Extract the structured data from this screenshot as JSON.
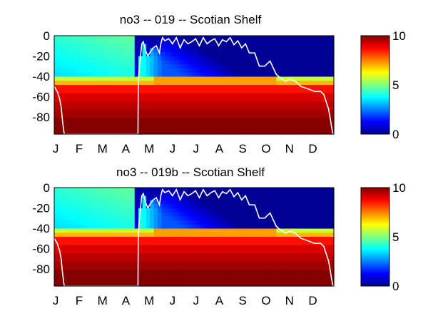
{
  "figure": {
    "background": "#ffffff",
    "colormap": "jet"
  },
  "chart_data": [
    {
      "type": "heatmap",
      "title": "no3 -- 019 -- Scotian Shelf",
      "x_ticks": [
        "J",
        "F",
        "M",
        "A",
        "M",
        "J",
        "J",
        "A",
        "S",
        "O",
        "N",
        "D"
      ],
      "y_ticks": [
        "0",
        "-20",
        "-40",
        "-60",
        "-80"
      ],
      "y_tick_values": [
        0,
        -20,
        -40,
        -60,
        -80
      ],
      "ylim": [
        -97,
        0
      ],
      "xlim": [
        1,
        365
      ],
      "colorbar": {
        "min": 0,
        "max": 10,
        "ticks": [
          "0",
          "5",
          "10"
        ],
        "tick_values": [
          0,
          5,
          10
        ]
      },
      "overlay_line": {
        "color": "#ffffff",
        "day": [
          1,
          5,
          8,
          10,
          12,
          14,
          110,
          110.5,
          112,
          114,
          115,
          117,
          120,
          123,
          126,
          130,
          134,
          138,
          140,
          142,
          145,
          150,
          155,
          160,
          165,
          170,
          175,
          180,
          185,
          190,
          195,
          200,
          205,
          210,
          215,
          220,
          225,
          230,
          235,
          240,
          245,
          250,
          255,
          262,
          268,
          275,
          282,
          290,
          296,
          302,
          308,
          315,
          322,
          330,
          340,
          348,
          352,
          355,
          358,
          360,
          362,
          364
        ],
        "depth": [
          -50,
          -55,
          -62,
          -70,
          -85,
          -97,
          -97,
          -45,
          -30,
          -15,
          -8,
          -6,
          -15,
          -20,
          -16,
          -12,
          -10,
          -17,
          -7,
          -2,
          -5,
          -3,
          -8,
          -2,
          -12,
          -4,
          -8,
          -6,
          -3,
          -10,
          -2,
          -8,
          -5,
          -3,
          -10,
          -4,
          -6,
          -2,
          -9,
          -5,
          -12,
          -8,
          -17,
          -17,
          -30,
          -30,
          -25,
          -38,
          -42,
          -45,
          -43,
          -45,
          -50,
          -52,
          -55,
          -55,
          -58,
          -65,
          -72,
          -80,
          -90,
          -97
        ]
      },
      "field_description": "no3 concentration by day of year and depth"
    },
    {
      "type": "heatmap",
      "title": "no3 -- 019b -- Scotian Shelf",
      "x_ticks": [
        "J",
        "F",
        "M",
        "A",
        "M",
        "J",
        "J",
        "A",
        "S",
        "O",
        "N",
        "D"
      ],
      "y_ticks": [
        "0",
        "-20",
        "-40",
        "-60",
        "-80"
      ],
      "y_tick_values": [
        0,
        -20,
        -40,
        -60,
        -80
      ],
      "ylim": [
        -97,
        0
      ],
      "xlim": [
        1,
        365
      ],
      "colorbar": {
        "min": 0,
        "max": 10,
        "ticks": [
          "0",
          "5",
          "10"
        ],
        "tick_values": [
          0,
          5,
          10
        ]
      },
      "overlay_line": {
        "color": "#ffffff",
        "day": [
          1,
          5,
          8,
          10,
          12,
          14,
          110,
          110.5,
          112,
          114,
          115,
          117,
          120,
          123,
          126,
          130,
          134,
          138,
          140,
          142,
          145,
          150,
          155,
          160,
          165,
          170,
          175,
          180,
          185,
          190,
          195,
          200,
          205,
          210,
          215,
          220,
          225,
          230,
          235,
          240,
          245,
          250,
          255,
          262,
          268,
          275,
          282,
          290,
          296,
          302,
          308,
          315,
          322,
          330,
          340,
          348,
          352,
          355,
          358,
          360,
          362,
          364
        ],
        "depth": [
          -50,
          -55,
          -62,
          -70,
          -85,
          -97,
          -97,
          -45,
          -30,
          -15,
          -8,
          -6,
          -15,
          -20,
          -16,
          -12,
          -10,
          -17,
          -7,
          -2,
          -5,
          -3,
          -8,
          -2,
          -12,
          -4,
          -8,
          -6,
          -3,
          -10,
          -2,
          -8,
          -5,
          -3,
          -10,
          -4,
          -6,
          -2,
          -9,
          -5,
          -12,
          -8,
          -17,
          -17,
          -30,
          -30,
          -25,
          -38,
          -42,
          -45,
          -43,
          -45,
          -50,
          -52,
          -55,
          -55,
          -58,
          -65,
          -72,
          -80,
          -90,
          -97
        ]
      },
      "field_description": "no3 concentration by day of year and depth"
    }
  ]
}
